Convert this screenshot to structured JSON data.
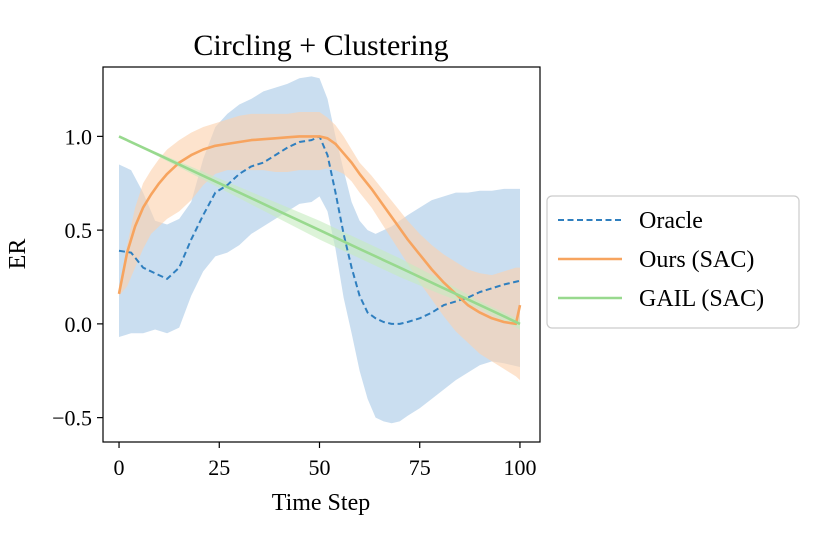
{
  "chart_data": {
    "type": "line",
    "title": "Circling + Clustering",
    "xlabel": "Time Step",
    "ylabel": "ER",
    "xlim": [
      -4,
      105
    ],
    "ylim": [
      -0.63,
      1.37
    ],
    "xticks": [
      0,
      25,
      50,
      75,
      100
    ],
    "xtick_labels": [
      "0",
      "25",
      "50",
      "75",
      "100"
    ],
    "yticks": [
      -0.5,
      0.0,
      0.5,
      1.0
    ],
    "ytick_labels": [
      "−0.5",
      "0.0",
      "0.5",
      "1.0"
    ],
    "grid": false,
    "legend_position": "outside-right",
    "series": [
      {
        "name": "Oracle",
        "color": "#2f7fbf",
        "band_color": "#a9c9e6",
        "style": "dashed",
        "x": [
          0,
          3,
          6,
          9,
          12,
          15,
          18,
          21,
          24,
          27,
          30,
          33,
          36,
          39,
          42,
          45,
          48,
          50,
          52,
          54,
          56,
          58,
          60,
          62,
          64,
          66,
          68,
          70,
          72,
          75,
          78,
          81,
          84,
          87,
          90,
          93,
          96,
          100
        ],
        "values": [
          0.39,
          0.38,
          0.3,
          0.27,
          0.24,
          0.3,
          0.45,
          0.58,
          0.7,
          0.74,
          0.8,
          0.84,
          0.86,
          0.9,
          0.94,
          0.97,
          0.98,
          1.0,
          0.9,
          0.7,
          0.48,
          0.3,
          0.15,
          0.06,
          0.03,
          0.01,
          0.0,
          0.0,
          0.01,
          0.03,
          0.06,
          0.1,
          0.12,
          0.14,
          0.17,
          0.19,
          0.21,
          0.23
        ],
        "upper": [
          0.85,
          0.82,
          0.7,
          0.55,
          0.53,
          0.56,
          0.65,
          0.88,
          1.05,
          1.12,
          1.17,
          1.2,
          1.24,
          1.26,
          1.28,
          1.31,
          1.32,
          1.31,
          1.2,
          1.0,
          0.82,
          0.65,
          0.55,
          0.5,
          0.48,
          0.5,
          0.52,
          0.55,
          0.58,
          0.62,
          0.66,
          0.68,
          0.7,
          0.7,
          0.71,
          0.71,
          0.72,
          0.72
        ],
        "lower": [
          -0.07,
          -0.05,
          -0.05,
          -0.03,
          -0.05,
          -0.02,
          0.15,
          0.28,
          0.36,
          0.38,
          0.42,
          0.48,
          0.52,
          0.56,
          0.6,
          0.64,
          0.65,
          0.68,
          0.6,
          0.4,
          0.14,
          -0.05,
          -0.25,
          -0.4,
          -0.5,
          -0.52,
          -0.53,
          -0.52,
          -0.49,
          -0.45,
          -0.4,
          -0.35,
          -0.3,
          -0.26,
          -0.22,
          -0.2,
          -0.21,
          -0.23
        ]
      },
      {
        "name": "Ours (SAC)",
        "color": "#f7a45f",
        "band_color": "#fcd2ae",
        "style": "solid",
        "x": [
          0,
          2,
          4,
          6,
          8,
          10,
          12,
          15,
          18,
          21,
          24,
          27,
          30,
          33,
          36,
          39,
          42,
          45,
          48,
          50,
          52,
          54,
          56,
          58,
          60,
          63,
          66,
          69,
          72,
          75,
          78,
          81,
          84,
          87,
          90,
          93,
          96,
          99,
          100
        ],
        "values": [
          0.16,
          0.38,
          0.52,
          0.62,
          0.69,
          0.75,
          0.8,
          0.86,
          0.9,
          0.93,
          0.95,
          0.96,
          0.97,
          0.98,
          0.985,
          0.99,
          0.995,
          1.0,
          1.0,
          1.0,
          0.99,
          0.96,
          0.91,
          0.86,
          0.8,
          0.72,
          0.63,
          0.54,
          0.45,
          0.37,
          0.29,
          0.22,
          0.16,
          0.1,
          0.06,
          0.03,
          0.01,
          0.0,
          0.1
        ],
        "upper": [
          0.17,
          0.42,
          0.62,
          0.75,
          0.82,
          0.88,
          0.93,
          0.98,
          1.02,
          1.05,
          1.07,
          1.09,
          1.11,
          1.12,
          1.12,
          1.12,
          1.12,
          1.13,
          1.13,
          1.13,
          1.1,
          1.06,
          1.0,
          0.93,
          0.86,
          0.79,
          0.71,
          0.63,
          0.55,
          0.48,
          0.42,
          0.37,
          0.33,
          0.29,
          0.27,
          0.26,
          0.28,
          0.3,
          0.3
        ],
        "lower": [
          0.15,
          0.2,
          0.3,
          0.4,
          0.48,
          0.52,
          0.56,
          0.6,
          0.66,
          0.74,
          0.8,
          0.82,
          0.82,
          0.82,
          0.82,
          0.81,
          0.81,
          0.82,
          0.82,
          0.82,
          0.83,
          0.82,
          0.8,
          0.76,
          0.7,
          0.62,
          0.52,
          0.42,
          0.32,
          0.22,
          0.13,
          0.04,
          -0.04,
          -0.1,
          -0.16,
          -0.2,
          -0.24,
          -0.28,
          -0.3
        ]
      },
      {
        "name": "GAIL (SAC)",
        "color": "#98d98e",
        "band_color": "#c6ecc0",
        "style": "solid",
        "x": [
          0,
          10,
          20,
          30,
          40,
          50,
          60,
          70,
          80,
          90,
          100
        ],
        "values": [
          1.0,
          0.9,
          0.8,
          0.7,
          0.6,
          0.5,
          0.4,
          0.3,
          0.2,
          0.1,
          0.0
        ],
        "upper": [
          1.0,
          0.91,
          0.82,
          0.73,
          0.64,
          0.55,
          0.45,
          0.35,
          0.24,
          0.12,
          0.02
        ],
        "lower": [
          1.0,
          0.89,
          0.78,
          0.67,
          0.56,
          0.45,
          0.35,
          0.25,
          0.16,
          0.08,
          -0.03
        ]
      }
    ]
  }
}
